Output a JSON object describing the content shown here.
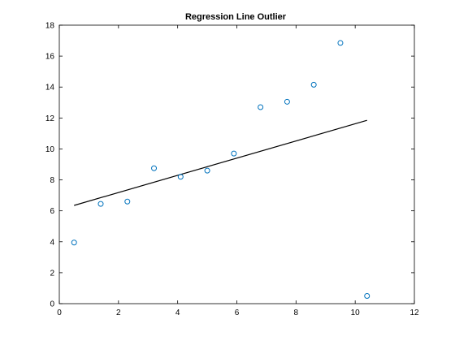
{
  "chart_data": {
    "type": "scatter",
    "title": "Regression Line Outlier",
    "xlabel": "",
    "ylabel": "",
    "xlim": [
      0,
      12
    ],
    "ylim": [
      0,
      18
    ],
    "xticks": [
      0,
      2,
      4,
      6,
      8,
      10,
      12
    ],
    "yticks": [
      0,
      2,
      4,
      6,
      8,
      10,
      12,
      14,
      16,
      18
    ],
    "grid": false,
    "series": [
      {
        "type": "scatter",
        "marker": "open-circle",
        "color": "#0072BD",
        "x": [
          0.5,
          1.4,
          2.3,
          3.2,
          4.1,
          5.0,
          5.9,
          6.8,
          7.7,
          8.6,
          9.5,
          10.4
        ],
        "y": [
          3.95,
          6.45,
          6.6,
          8.75,
          8.2,
          8.6,
          9.7,
          12.7,
          13.05,
          14.15,
          16.85,
          0.5
        ]
      },
      {
        "type": "line",
        "color": "#000000",
        "x": [
          0.5,
          10.4
        ],
        "y": [
          6.35,
          11.85
        ]
      }
    ]
  }
}
